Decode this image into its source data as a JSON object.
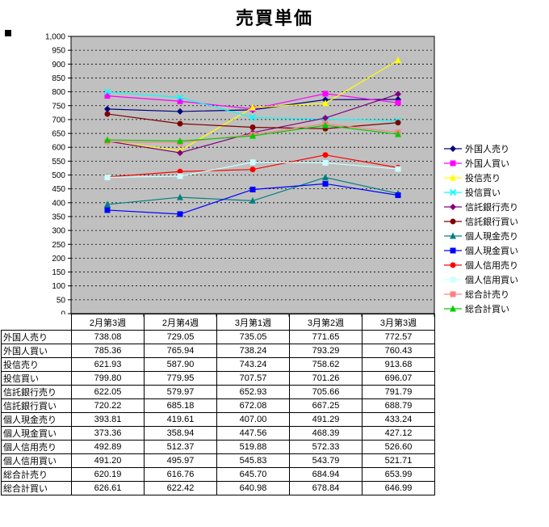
{
  "chart_data": {
    "type": "line",
    "title": "売買単価",
    "categories": [
      "2月第3週",
      "2月第4週",
      "3月第1週",
      "3月第2週",
      "3月第3週"
    ],
    "ylim": [
      0,
      1000
    ],
    "ytick_step": 50,
    "grid": "horizontal-dashed",
    "plot_bg": "#C0C0C0",
    "axis_color": "#000000",
    "legend_position": "right",
    "value_format": "0.00",
    "series": [
      {
        "name": "外国人売り",
        "color": "#000080",
        "marker": "diamond",
        "values": [
          738.08,
          729.05,
          735.05,
          771.65,
          772.57
        ]
      },
      {
        "name": "外国人買い",
        "color": "#FF00FF",
        "marker": "square",
        "values": [
          785.36,
          765.94,
          738.24,
          793.29,
          760.43
        ]
      },
      {
        "name": "投信売り",
        "color": "#FFFF00",
        "marker": "triangle",
        "values": [
          621.93,
          587.9,
          743.24,
          758.62,
          913.68
        ]
      },
      {
        "name": "投信買い",
        "color": "#00FFFF",
        "marker": "x",
        "values": [
          799.8,
          779.95,
          707.57,
          701.26,
          696.07
        ]
      },
      {
        "name": "信託銀行売り",
        "color": "#800080",
        "marker": "diamond",
        "values": [
          622.05,
          579.97,
          652.93,
          705.66,
          791.79
        ]
      },
      {
        "name": "信託銀行買い",
        "color": "#800000",
        "marker": "circle",
        "values": [
          720.22,
          685.18,
          672.08,
          667.25,
          688.79
        ]
      },
      {
        "name": "個人現金売り",
        "color": "#008080",
        "marker": "triangle",
        "values": [
          393.81,
          419.61,
          407.0,
          491.29,
          433.24
        ]
      },
      {
        "name": "個人現金買い",
        "color": "#0000FF",
        "marker": "square",
        "values": [
          373.36,
          358.94,
          447.56,
          468.39,
          427.12
        ]
      },
      {
        "name": "個人信用売り",
        "color": "#FF0000",
        "marker": "circle",
        "values": [
          492.89,
          512.37,
          519.88,
          572.33,
          526.6
        ]
      },
      {
        "name": "個人信用買い",
        "color": "#CCFFFF",
        "marker": "square",
        "values": [
          491.2,
          495.97,
          545.83,
          543.79,
          521.71
        ]
      },
      {
        "name": "総合計売り",
        "color": "#FF8080",
        "marker": "square",
        "values": [
          620.19,
          616.76,
          645.7,
          684.94,
          653.99
        ]
      },
      {
        "name": "総合計買い",
        "color": "#00CC00",
        "marker": "triangle",
        "values": [
          626.61,
          622.42,
          640.98,
          678.84,
          646.99
        ]
      }
    ]
  }
}
